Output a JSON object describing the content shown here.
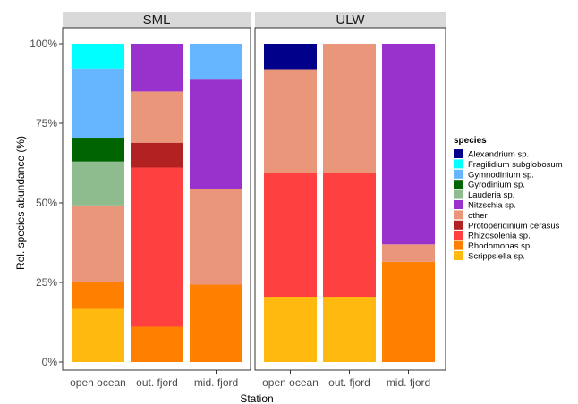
{
  "chart_data": {
    "type": "bar",
    "stacked": true,
    "facets": [
      "SML",
      "ULW"
    ],
    "categories": [
      "open ocean",
      "out. fjord",
      "mid. fjord"
    ],
    "xlabel": "Station",
    "ylabel": "Rel. species abundance (%)",
    "ylim": [
      0,
      1
    ],
    "yticks": [
      0,
      0.25,
      0.5,
      0.75,
      1.0
    ],
    "ytick_labels": [
      "0%",
      "25%",
      "50%",
      "75%",
      "100%"
    ],
    "grid": false,
    "legend": {
      "title": "species",
      "position": "right",
      "entries": [
        {
          "name": "Alexandrium sp.",
          "color": "#00008B"
        },
        {
          "name": "Fragilidium subglobosum",
          "color": "#00FFFF"
        },
        {
          "name": "Gymnodinium sp.",
          "color": "#66B5FF"
        },
        {
          "name": "Gyrodinium sp.",
          "color": "#006400"
        },
        {
          "name": "Lauderia sp.",
          "color": "#8FBC8F"
        },
        {
          "name": "Nitzschia sp.",
          "color": "#9932CC"
        },
        {
          "name": "other",
          "color": "#E9967A"
        },
        {
          "name": "Protoperidinium cerasus",
          "color": "#B22222"
        },
        {
          "name": "Rhizosolenia sp.",
          "color": "#FF4040"
        },
        {
          "name": "Rhodomonas sp.",
          "color": "#FF7F00"
        },
        {
          "name": "Scrippsiella sp.",
          "color": "#FFB90F"
        }
      ]
    },
    "stack_order": [
      "Scrippsiella sp.",
      "Rhodomonas sp.",
      "Rhizosolenia sp.",
      "Protoperidinium cerasus",
      "other",
      "Nitzschia sp.",
      "Lauderia sp.",
      "Gyrodinium sp.",
      "Gymnodinium sp.",
      "Fragilidium subglobosum",
      "Alexandrium sp."
    ],
    "data": {
      "SML": {
        "open ocean": {
          "Scrippsiella sp.": 0.167,
          "Rhodomonas sp.": 0.083,
          "other": 0.242,
          "Lauderia sp.": 0.138,
          "Gyrodinium sp.": 0.075,
          "Gymnodinium sp.": 0.217,
          "Fragilidium subglobosum": 0.078
        },
        "out. fjord": {
          "Rhodomonas sp.": 0.111,
          "Rhizosolenia sp.": 0.5,
          "Protoperidinium cerasus": 0.078,
          "other": 0.161,
          "Nitzschia sp.": 0.15
        },
        "mid. fjord": {
          "Rhodomonas sp.": 0.243,
          "other": 0.3,
          "Nitzschia sp.": 0.347,
          "Gymnodinium sp.": 0.11
        }
      },
      "ULW": {
        "open ocean": {
          "Scrippsiella sp.": 0.205,
          "Rhizosolenia sp.": 0.39,
          "other": 0.325,
          "Alexandrium sp.": 0.08
        },
        "out. fjord": {
          "Scrippsiella sp.": 0.205,
          "Rhizosolenia sp.": 0.39,
          "other": 0.405
        },
        "mid. fjord": {
          "Rhodomonas sp.": 0.315,
          "other": 0.055,
          "Nitzschia sp.": 0.63
        }
      }
    }
  }
}
